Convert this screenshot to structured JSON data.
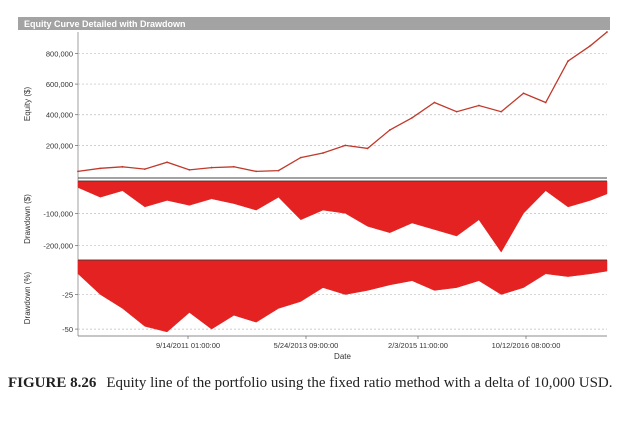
{
  "chart_data": [
    {
      "type": "line",
      "title": "Equity Curve Detailed with Drawdown",
      "ylabel": "Equity ($)",
      "yticks": [
        200000,
        400000,
        600000,
        800000
      ],
      "ytick_labels": [
        "200,000",
        "400,000",
        "600,000",
        "800,000"
      ],
      "ylim": [
        0,
        940000
      ],
      "grid": true,
      "series": [
        {
          "color": "#c0392b",
          "x": [
            "2010-05",
            "2010-09",
            "2011-01",
            "2011-05",
            "2011-09",
            "2012-01",
            "2012-05",
            "2012-09",
            "2013-01",
            "2013-05",
            "2013-09",
            "2014-01",
            "2014-05",
            "2014-09",
            "2015-01",
            "2015-05",
            "2015-09",
            "2016-01",
            "2016-05",
            "2016-09",
            "2017-01",
            "2017-05",
            "2017-09",
            "2018-01",
            "2018-04"
          ],
          "values": [
            30000,
            50000,
            60000,
            45000,
            90000,
            40000,
            55000,
            60000,
            30000,
            35000,
            120000,
            150000,
            200000,
            180000,
            300000,
            380000,
            480000,
            420000,
            460000,
            420000,
            540000,
            480000,
            750000,
            850000,
            940000
          ]
        }
      ]
    },
    {
      "type": "area",
      "ylabel": "Drawdown ($)",
      "yticks": [
        -100000,
        -200000
      ],
      "ytick_labels": [
        "-100,000",
        "-200,000"
      ],
      "ylim": [
        -235000,
        0
      ],
      "grid": true,
      "color": "#e52222",
      "x": [
        "2010-05",
        "2010-09",
        "2011-01",
        "2011-05",
        "2011-09",
        "2012-01",
        "2012-05",
        "2012-09",
        "2013-01",
        "2013-05",
        "2013-09",
        "2014-01",
        "2014-05",
        "2014-09",
        "2015-01",
        "2015-05",
        "2015-09",
        "2016-01",
        "2016-05",
        "2016-09",
        "2017-01",
        "2017-05",
        "2017-09",
        "2018-01",
        "2018-04"
      ],
      "values": [
        -20000,
        -50000,
        -30000,
        -80000,
        -60000,
        -75000,
        -55000,
        -70000,
        -90000,
        -50000,
        -120000,
        -90000,
        -100000,
        -140000,
        -160000,
        -130000,
        -150000,
        -170000,
        -120000,
        -220000,
        -100000,
        -30000,
        -80000,
        -60000,
        -40000
      ]
    },
    {
      "type": "area",
      "ylabel": "Drawdown (%)",
      "yticks": [
        -25,
        -50
      ],
      "ytick_labels": [
        "-25",
        "-50"
      ],
      "ylim": [
        -55,
        0
      ],
      "grid": true,
      "xlabel": "Date",
      "xtick_labels": [
        "9/14/2011 01:00:00",
        "5/24/2013 09:00:00",
        "2/3/2015 11:00:00",
        "10/12/2016 08:00:00"
      ],
      "color": "#e52222",
      "x": [
        "2010-05",
        "2010-09",
        "2011-01",
        "2011-05",
        "2011-09",
        "2012-01",
        "2012-05",
        "2012-09",
        "2013-01",
        "2013-05",
        "2013-09",
        "2014-01",
        "2014-05",
        "2014-09",
        "2015-01",
        "2015-05",
        "2015-09",
        "2016-01",
        "2016-05",
        "2016-09",
        "2017-01",
        "2017-05",
        "2017-09",
        "2018-01",
        "2018-04"
      ],
      "values": [
        -10,
        -25,
        -35,
        -48,
        -52,
        -38,
        -50,
        -40,
        -45,
        -35,
        -30,
        -20,
        -25,
        -22,
        -18,
        -15,
        -22,
        -20,
        -15,
        -25,
        -20,
        -10,
        -12,
        -10,
        -8
      ]
    }
  ],
  "caption": {
    "figure_label": "FIGURE 8.26",
    "text": "Equity line of the portfolio using the fixed ratio method with a delta of 10,000 USD."
  }
}
